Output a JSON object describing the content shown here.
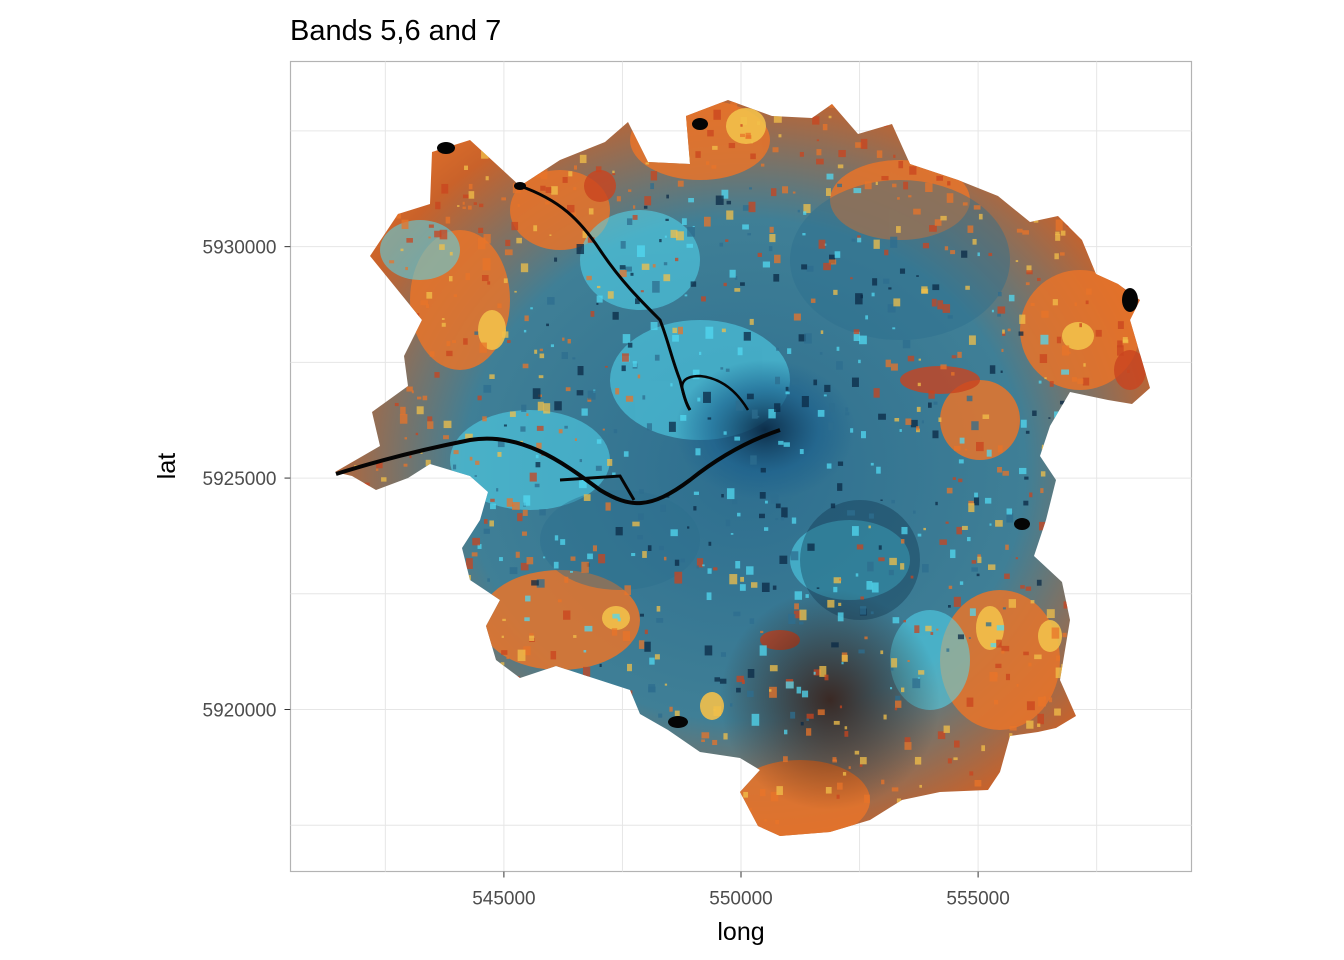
{
  "chart_data": {
    "type": "heatmap",
    "title": "Bands 5,6 and 7",
    "xlabel": "long",
    "ylabel": "lat",
    "xlim": [
      540500,
      559500
    ],
    "ylim": [
      5916500,
      5934000
    ],
    "x_ticks": [
      545000,
      550000,
      555000
    ],
    "x_tick_labels": [
      "545000",
      "550000",
      "555000"
    ],
    "y_ticks": [
      5920000,
      5925000,
      5930000
    ],
    "y_tick_labels": [
      "5920000",
      "5925000",
      "5930000"
    ],
    "grid": true,
    "legend": "none",
    "colors": {
      "panel_border": "#b3b3b3",
      "grid": "#e6e6e6",
      "urban_cyan": "#52d8f0",
      "urban_blue": "#2d6e8f",
      "dark_urban": "#0b2a45",
      "vegetation_orange": "#e8742a",
      "bright_field": "#f2c04a",
      "bare_red": "#c9441f",
      "water": "#050505"
    }
  }
}
